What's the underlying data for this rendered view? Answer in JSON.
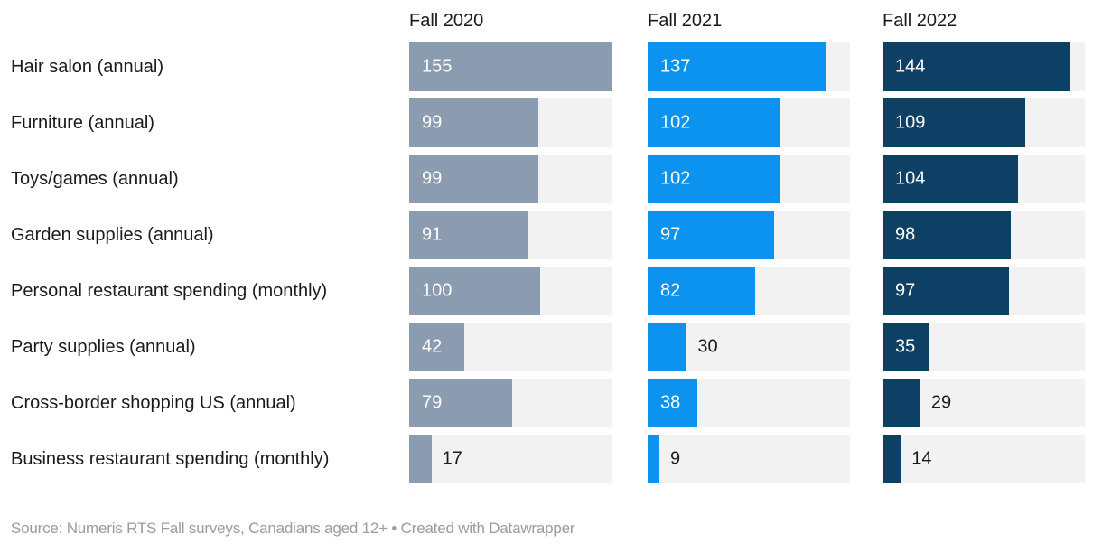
{
  "chart_data": {
    "type": "bar",
    "variant": "horizontal-split-bars",
    "categories": [
      "Hair salon (annual)",
      "Furniture (annual)",
      "Toys/games (annual)",
      "Garden supplies (annual)",
      "Personal restaurant spending (monthly)",
      "Party supplies (annual)",
      "Cross-border shopping US (annual)",
      "Business restaurant spending (monthly)"
    ],
    "series": [
      {
        "name": "Fall 2020",
        "color": "#8b9cb0",
        "values": [
          155,
          99,
          99,
          91,
          100,
          42,
          79,
          17
        ]
      },
      {
        "name": "Fall 2021",
        "color": "#0c93f0",
        "values": [
          137,
          102,
          102,
          97,
          82,
          30,
          38,
          9
        ]
      },
      {
        "name": "Fall 2022",
        "color": "#0e3f64",
        "values": [
          144,
          109,
          104,
          98,
          97,
          35,
          29,
          14
        ]
      }
    ],
    "xlim": [
      0,
      155
    ],
    "track_color": "#f2f2f2",
    "label_color": "#1a1a1a",
    "value_label_inside_color": "#ffffff",
    "grid": "off",
    "legend_position": "column-headers",
    "value_labels": "at bar start, moved outside bar when bar is too short"
  },
  "footer": {
    "source": "Source: Numeris RTS Fall surveys, Canadians aged 12+",
    "separator": " • ",
    "attribution": "Created with Datawrapper"
  }
}
